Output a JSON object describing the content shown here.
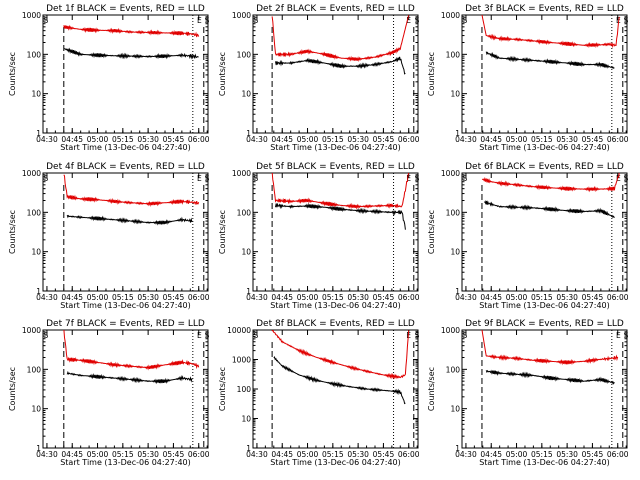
{
  "figure": {
    "xlabel": "Start Time (13-Dec-06 04:27:40)",
    "ylabel": "Counts/sec",
    "x_ticks": [
      "04:30",
      "04:45",
      "05:00",
      "05:15",
      "05:30",
      "05:45",
      "06:00"
    ],
    "y_ticks": [
      "1",
      "10",
      "100",
      "1000"
    ],
    "y_ticks_extended": [
      "1",
      "10",
      "100",
      "1000",
      "10000"
    ]
  },
  "colors": {
    "events": "#000000",
    "lld": "#e00000",
    "axes": "#000000"
  },
  "chart_data": [
    {
      "type": "line",
      "title": "Det 1f BLACK = Events, RED = LLD",
      "y_scale": "log",
      "ylim": [
        1,
        1000
      ],
      "xlim": [
        "04:27:40",
        "06:05:30"
      ],
      "markers": {
        "dashed": [
          "04:40:00",
          "06:03:00"
        ],
        "dotted": [
          "05:56:30"
        ]
      },
      "flags": {
        "S": "04:28:00",
        "E": "05:59:00",
        "S2": "06:03:30"
      },
      "series": [
        {
          "name": "RED = LLD",
          "x": [
            "04:40:00",
            "04:50:00",
            "05:00:00",
            "05:10:00",
            "05:20:00",
            "05:30:00",
            "05:40:00",
            "05:50:00",
            "05:56:00",
            "06:00:00"
          ],
          "y": [
            500,
            430,
            410,
            400,
            370,
            360,
            350,
            345,
            330,
            300
          ]
        },
        {
          "name": "BLACK = Events",
          "x": [
            "04:40:00",
            "04:50:00",
            "05:00:00",
            "05:10:00",
            "05:20:00",
            "05:30:00",
            "05:40:00",
            "05:50:00",
            "05:56:00",
            "06:00:00"
          ],
          "y": [
            140,
            100,
            95,
            92,
            90,
            88,
            90,
            95,
            90,
            85
          ]
        }
      ]
    },
    {
      "type": "line",
      "title": "Det 2f BLACK = Events, RED = LLD",
      "y_scale": "log",
      "ylim": [
        1,
        1000
      ],
      "xlim": [
        "04:27:40",
        "06:05:30"
      ],
      "markers": {
        "dashed": [
          "04:39:00",
          "06:03:00"
        ],
        "dotted": [
          "05:51:00"
        ]
      },
      "flags": {
        "S": "04:28:00",
        "E": "05:58:30",
        "S2": "06:03:30"
      },
      "series": [
        {
          "name": "RED = LLD",
          "x": [
            "04:39:00",
            "04:41:00",
            "04:50:00",
            "05:00:00",
            "05:10:00",
            "05:20:00",
            "05:30:00",
            "05:40:00",
            "05:50:00",
            "05:55:00",
            "06:00:00"
          ],
          "y": [
            1000,
            100,
            100,
            120,
            100,
            80,
            75,
            85,
            110,
            140,
            1000
          ]
        },
        {
          "name": "BLACK = Events",
          "x": [
            "04:41:00",
            "04:50:00",
            "05:00:00",
            "05:10:00",
            "05:20:00",
            "05:30:00",
            "05:40:00",
            "05:50:00",
            "05:55:00",
            "05:58:00"
          ],
          "y": [
            60,
            60,
            70,
            60,
            50,
            50,
            55,
            65,
            80,
            30
          ]
        }
      ]
    },
    {
      "type": "line",
      "title": "Det 3f BLACK = Events, RED = LLD",
      "y_scale": "log",
      "ylim": [
        1,
        1000
      ],
      "xlim": [
        "04:27:40",
        "06:05:30"
      ],
      "markers": {
        "dashed": [
          "04:39:30",
          "06:03:00"
        ],
        "dotted": [
          "05:56:30"
        ]
      },
      "flags": {
        "S": "04:28:00",
        "E": "05:59:00",
        "S2": "06:03:30"
      },
      "series": [
        {
          "name": "RED = LLD",
          "x": [
            "04:39:30",
            "04:42:00",
            "04:50:00",
            "05:00:00",
            "05:10:00",
            "05:20:00",
            "05:30:00",
            "05:40:00",
            "05:50:00",
            "05:55:00",
            "05:59:00",
            "06:01:00"
          ],
          "y": [
            1000,
            300,
            250,
            240,
            220,
            200,
            185,
            170,
            175,
            180,
            170,
            1000
          ]
        },
        {
          "name": "BLACK = Events",
          "x": [
            "04:42:00",
            "04:50:00",
            "05:00:00",
            "05:10:00",
            "05:20:00",
            "05:30:00",
            "05:40:00",
            "05:50:00",
            "05:58:00"
          ],
          "y": [
            110,
            80,
            75,
            70,
            65,
            60,
            55,
            55,
            45
          ]
        }
      ]
    },
    {
      "type": "line",
      "title": "Det 4f BLACK = Events, RED = LLD",
      "y_scale": "log",
      "ylim": [
        1,
        1000
      ],
      "xlim": [
        "04:27:40",
        "06:05:30"
      ],
      "markers": {
        "dashed": [
          "04:40:00",
          "06:03:00"
        ],
        "dotted": [
          "05:56:30"
        ]
      },
      "flags": {
        "S": "04:28:00",
        "E": "05:59:00",
        "S2": "06:03:30"
      },
      "series": [
        {
          "name": "RED = LLD",
          "x": [
            "04:40:00",
            "04:42:00",
            "04:50:00",
            "05:00:00",
            "05:10:00",
            "05:20:00",
            "05:30:00",
            "05:40:00",
            "05:50:00",
            "05:56:00",
            "06:00:00"
          ],
          "y": [
            1000,
            250,
            220,
            210,
            190,
            175,
            165,
            175,
            190,
            180,
            170
          ]
        },
        {
          "name": "BLACK = Events",
          "x": [
            "04:42:00",
            "04:50:00",
            "05:00:00",
            "05:10:00",
            "05:20:00",
            "05:30:00",
            "05:40:00",
            "05:50:00",
            "05:56:00"
          ],
          "y": [
            80,
            75,
            70,
            65,
            60,
            55,
            55,
            65,
            60
          ]
        }
      ]
    },
    {
      "type": "line",
      "title": "Det 5f BLACK = Events, RED = LLD",
      "y_scale": "log",
      "ylim": [
        1,
        1000
      ],
      "xlim": [
        "04:27:40",
        "06:05:30"
      ],
      "markers": {
        "dashed": [
          "04:39:00",
          "06:03:00"
        ],
        "dotted": [
          "05:51:00"
        ]
      },
      "flags": {
        "S": "04:28:00",
        "E": "05:58:30",
        "S2": "06:03:30"
      },
      "series": [
        {
          "name": "RED = LLD",
          "x": [
            "04:39:00",
            "04:41:00",
            "04:50:00",
            "05:00:00",
            "05:10:00",
            "05:20:00",
            "05:30:00",
            "05:40:00",
            "05:50:00",
            "05:56:00",
            "06:00:00"
          ],
          "y": [
            1000,
            200,
            190,
            200,
            170,
            150,
            140,
            145,
            150,
            140,
            1000
          ]
        },
        {
          "name": "BLACK = Events",
          "x": [
            "04:41:00",
            "04:50:00",
            "05:00:00",
            "05:10:00",
            "05:20:00",
            "05:30:00",
            "05:40:00",
            "05:50:00",
            "05:56:00",
            "05:58:00"
          ],
          "y": [
            150,
            140,
            145,
            135,
            120,
            110,
            105,
            100,
            100,
            40
          ]
        }
      ]
    },
    {
      "type": "line",
      "title": "Det 6f BLACK = Events, RED = LLD",
      "y_scale": "log",
      "ylim": [
        1,
        1000
      ],
      "xlim": [
        "04:27:40",
        "06:05:30"
      ],
      "markers": {
        "dashed": [
          "04:39:30",
          "06:03:00"
        ],
        "dotted": [
          "05:56:30"
        ]
      },
      "flags": {
        "S": "04:28:00",
        "E": "05:59:00",
        "S2": "06:03:30"
      },
      "series": [
        {
          "name": "RED = LLD",
          "x": [
            "04:39:30",
            "04:45:00",
            "04:50:00",
            "05:00:00",
            "05:10:00",
            "05:20:00",
            "05:30:00",
            "05:40:00",
            "05:50:00",
            "05:58:00",
            "06:01:00"
          ],
          "y": [
            700,
            600,
            550,
            500,
            450,
            420,
            400,
            390,
            390,
            400,
            1000
          ]
        },
        {
          "name": "BLACK = Events",
          "x": [
            "04:41:00",
            "04:50:00",
            "05:00:00",
            "05:10:00",
            "05:20:00",
            "05:30:00",
            "05:40:00",
            "05:50:00",
            "05:58:00"
          ],
          "y": [
            180,
            140,
            135,
            130,
            120,
            110,
            105,
            110,
            75
          ]
        }
      ]
    },
    {
      "type": "line",
      "title": "Det 7f BLACK = Events, RED = LLD",
      "y_scale": "log",
      "ylim": [
        1,
        1000
      ],
      "xlim": [
        "04:27:40",
        "06:05:30"
      ],
      "markers": {
        "dashed": [
          "04:40:00",
          "06:03:00"
        ],
        "dotted": [
          "05:56:30"
        ]
      },
      "flags": {
        "S": "04:28:00",
        "E": "05:59:00",
        "S2": "06:03:30"
      },
      "series": [
        {
          "name": "RED = LLD",
          "x": [
            "04:40:00",
            "04:42:00",
            "04:50:00",
            "05:00:00",
            "05:10:00",
            "05:20:00",
            "05:30:00",
            "05:40:00",
            "05:50:00",
            "05:56:00",
            "06:00:00"
          ],
          "y": [
            1000,
            180,
            170,
            150,
            130,
            120,
            110,
            130,
            150,
            140,
            120
          ]
        },
        {
          "name": "BLACK = Events",
          "x": [
            "04:42:00",
            "04:50:00",
            "05:00:00",
            "05:10:00",
            "05:20:00",
            "05:30:00",
            "05:40:00",
            "05:50:00",
            "05:56:00"
          ],
          "y": [
            80,
            70,
            65,
            60,
            55,
            50,
            50,
            60,
            55
          ]
        }
      ]
    },
    {
      "type": "line",
      "title": "Det 8f BLACK = Events, RED = LLD",
      "y_scale": "log",
      "ylim": [
        1,
        10000
      ],
      "xlim": [
        "04:27:40",
        "06:05:30"
      ],
      "markers": {
        "dashed": [
          "04:39:00",
          "06:03:00"
        ],
        "dotted": [
          "05:51:00"
        ]
      },
      "flags": {
        "S": "04:28:00",
        "E": "05:58:30",
        "S2": "06:03:30"
      },
      "series": [
        {
          "name": "RED = LLD",
          "x": [
            "04:39:00",
            "04:45:00",
            "04:55:00",
            "05:05:00",
            "05:15:00",
            "05:25:00",
            "05:35:00",
            "05:45:00",
            "05:55:00",
            "05:58:00",
            "06:00:00"
          ],
          "y": [
            10000,
            4000,
            2000,
            1200,
            800,
            550,
            400,
            300,
            250,
            300,
            10000
          ]
        },
        {
          "name": "BLACK = Events",
          "x": [
            "04:40:00",
            "04:45:00",
            "04:55:00",
            "05:05:00",
            "05:15:00",
            "05:25:00",
            "05:35:00",
            "05:45:00",
            "05:55:00",
            "05:58:00"
          ],
          "y": [
            1200,
            600,
            300,
            200,
            150,
            120,
            100,
            90,
            80,
            30
          ]
        }
      ]
    },
    {
      "type": "line",
      "title": "Det 9f BLACK = Events, RED = LLD",
      "y_scale": "log",
      "ylim": [
        1,
        1000
      ],
      "xlim": [
        "04:27:40",
        "06:05:30"
      ],
      "markers": {
        "dashed": [
          "04:39:30",
          "06:03:00"
        ],
        "dotted": [
          "05:56:30"
        ]
      },
      "flags": {
        "S": "04:28:00",
        "E": "05:59:00",
        "S2": "06:03:30"
      },
      "series": [
        {
          "name": "RED = LLD",
          "x": [
            "04:39:30",
            "04:42:00",
            "04:50:00",
            "05:00:00",
            "05:10:00",
            "05:20:00",
            "05:30:00",
            "05:40:00",
            "05:50:00",
            "05:56:00",
            "06:00:00"
          ],
          "y": [
            1000,
            220,
            200,
            190,
            170,
            160,
            150,
            160,
            180,
            190,
            200
          ]
        },
        {
          "name": "BLACK = Events",
          "x": [
            "04:42:00",
            "04:50:00",
            "05:00:00",
            "05:10:00",
            "05:20:00",
            "05:30:00",
            "05:40:00",
            "05:50:00",
            "05:58:00"
          ],
          "y": [
            90,
            80,
            75,
            70,
            60,
            55,
            50,
            55,
            45
          ]
        }
      ]
    }
  ]
}
